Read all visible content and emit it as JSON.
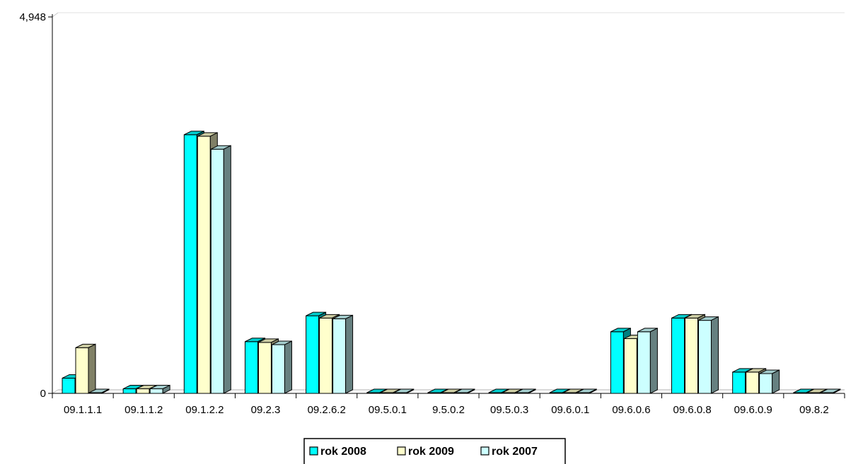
{
  "chart_data": {
    "type": "bar",
    "title": "",
    "xlabel": "",
    "ylabel": "",
    "ylim": [
      0,
      4948
    ],
    "y_tick_labels": [
      "0",
      "4,948"
    ],
    "categories": [
      "09.1.1.1",
      "09.1.1.2",
      "09.1.2.2",
      "09.2.3",
      "09.2.6.2",
      "09.5.0.1",
      "9.5.0.2",
      "09.5.0.3",
      "09.6.0.1",
      "09.6.0.6",
      "09.6.0.8",
      "09.6.0.9",
      "09.8.2"
    ],
    "series": [
      {
        "name": "rok 2008",
        "color": "#00ffff",
        "values": [
          200,
          60,
          3400,
          680,
          1020,
          0,
          0,
          0,
          0,
          810,
          990,
          280,
          0
        ]
      },
      {
        "name": "rok 2009",
        "color": "#ffffcc",
        "values": [
          600,
          60,
          3380,
          670,
          990,
          0,
          0,
          0,
          0,
          720,
          990,
          280,
          0
        ]
      },
      {
        "name": "rok 2007",
        "color": "#ccffff",
        "values": [
          0,
          60,
          3210,
          640,
          980,
          0,
          0,
          0,
          0,
          810,
          960,
          260,
          0
        ]
      }
    ],
    "grid": false,
    "legend_position": "bottom"
  }
}
